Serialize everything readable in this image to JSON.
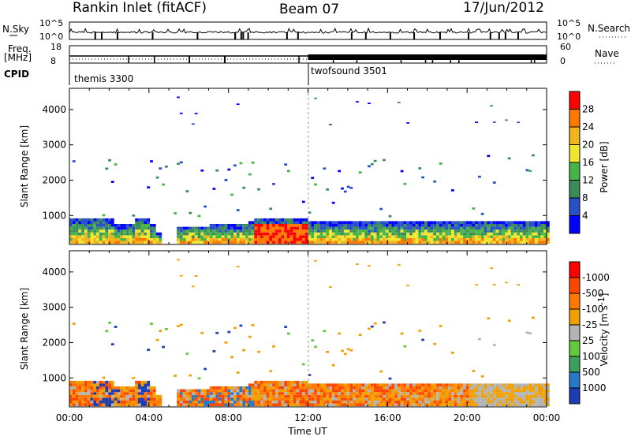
{
  "header": {
    "station": "Rankin Inlet (fitACF)",
    "beam": "Beam 07",
    "date": "17/Jun/2012"
  },
  "nsky_panel": {
    "left_label": "N.Sky",
    "left_ticks": [
      "10^5",
      "10^0"
    ],
    "right_label": "N.Search",
    "right_ticks": [
      "10^5",
      "10^0"
    ]
  },
  "freq_panel": {
    "left_label_line1": "Freq.",
    "left_label_line2": "[MHz]",
    "left_ticks": [
      "18",
      "8"
    ],
    "right_label": "Nave",
    "right_ticks": [
      "60",
      "0"
    ]
  },
  "cpid_panel": {
    "label": "CPID",
    "modes": [
      {
        "name": "themis 3300",
        "start_hour": 0
      },
      {
        "name": "twofsound 3501",
        "start_hour": 12
      }
    ]
  },
  "chart_data": [
    {
      "type": "heatmap",
      "quantity": "power",
      "ylabel": "Slant Range [km]",
      "xlabel": "",
      "xlim": [
        0,
        24
      ],
      "ylim": [
        180,
        4600
      ],
      "yticks": [
        1000,
        2000,
        3000,
        4000
      ],
      "colorbar_label": "Power [dB]",
      "colorbar_ticks": [
        "4",
        "8",
        "12",
        "16",
        "20",
        "24",
        "28"
      ],
      "colors": [
        "#0000ff",
        "#2850c8",
        "#3c8c5a",
        "#46b446",
        "#f0e632",
        "#f0b41e",
        "#ff7800",
        "#ff0000"
      ]
    },
    {
      "type": "heatmap",
      "quantity": "velocity",
      "ylabel": "Slant Range [km]",
      "xlabel": "Time UT",
      "xlim": [
        0,
        24
      ],
      "ylim": [
        180,
        4600
      ],
      "yticks": [
        1000,
        2000,
        3000,
        4000
      ],
      "xticks": [
        "00:00",
        "04:00",
        "08:00",
        "12:00",
        "16:00",
        "20:00",
        "00:00"
      ],
      "colorbar_label": "Velocity [m s",
      "colorbar_label_exponent": "-1",
      "colorbar_label_close": "]",
      "colorbar_ticks": [
        "1000",
        "500",
        "100",
        "25",
        "-25",
        "-100",
        "-500",
        "-1000"
      ],
      "colors": [
        "#1e3cb4",
        "#2878c8",
        "#3ca05a",
        "#64c83c",
        "#b4b4b4",
        "#f0a000",
        "#ff7800",
        "#ff4600",
        "#ff0000"
      ]
    }
  ]
}
